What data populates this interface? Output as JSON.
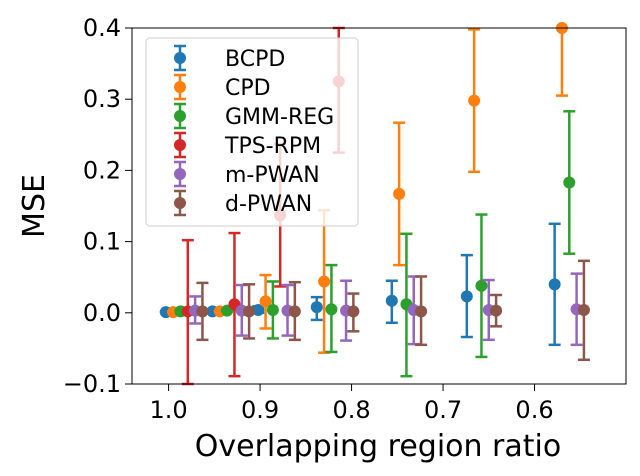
{
  "chart_data": {
    "type": "scatter",
    "subtype": "errorbar",
    "title": "",
    "xlabel": "Overlapping region ratio",
    "ylabel": "MSE",
    "x_inverted": true,
    "xlim": [
      1.04,
      0.5
    ],
    "ylim": [
      -0.1,
      0.4
    ],
    "x_ticks": [
      1.0,
      0.9,
      0.8,
      0.7,
      0.6
    ],
    "x_tick_labels": [
      "1.0",
      "0.9",
      "0.8",
      "0.7",
      "0.6"
    ],
    "y_ticks": [
      -0.1,
      0.0,
      0.1,
      0.2,
      0.3,
      0.4
    ],
    "y_tick_labels": [
      "−0.1",
      "0.0",
      "0.1",
      "0.2",
      "0.3",
      "0.4"
    ],
    "legend_position": "top-left",
    "series": [
      {
        "name": "BCPD",
        "color": "#1f77b4",
        "x": [
          1.003,
          0.952,
          0.902,
          0.838,
          0.756,
          0.674,
          0.578
        ],
        "y": [
          0.001,
          0.002,
          0.004,
          0.008,
          0.017,
          0.023,
          0.04
        ],
        "err_low": [
          0.0,
          0.0,
          0.004,
          0.018,
          0.031,
          0.057,
          0.085
        ],
        "err_high": [
          0.001,
          0.002,
          0.005,
          0.014,
          0.028,
          0.058,
          0.085
        ]
      },
      {
        "name": "CPD",
        "color": "#ff7f0e",
        "x": [
          0.995,
          0.944,
          0.894,
          0.83,
          0.748,
          0.666,
          0.57
        ],
        "y": [
          0.001,
          0.002,
          0.016,
          0.044,
          0.167,
          0.298,
          0.4
        ],
        "err_low": [
          0.0,
          0.0,
          0.038,
          0.1,
          0.1,
          0.1,
          0.095
        ],
        "err_high": [
          0.001,
          0.001,
          0.037,
          0.1,
          0.1,
          0.1,
          0.0
        ]
      },
      {
        "name": "GMM-REG",
        "color": "#2ca02c",
        "x": [
          0.987,
          0.936,
          0.886,
          0.822,
          0.74,
          0.658,
          0.562
        ],
        "y": [
          0.002,
          0.003,
          0.004,
          0.005,
          0.012,
          0.038,
          0.183
        ],
        "err_low": [
          0.0,
          0.0,
          0.04,
          0.06,
          0.101,
          0.1,
          0.1
        ],
        "err_high": [
          0.002,
          0.002,
          0.04,
          0.062,
          0.099,
          0.1,
          0.1
        ]
      },
      {
        "name": "TPS-RPM",
        "color": "#d62728",
        "x": [
          0.979,
          0.928,
          0.878,
          0.814
        ],
        "y": [
          0.002,
          0.012,
          0.137,
          0.325
        ],
        "err_low": [
          0.102,
          0.101,
          0.1,
          0.1
        ],
        "err_high": [
          0.1,
          0.1,
          0.1,
          0.075
        ]
      },
      {
        "name": "m-PWAN",
        "color": "#9467bd",
        "x": [
          0.971,
          0.92,
          0.87,
          0.806,
          0.732,
          0.65,
          0.554
        ],
        "y": [
          0.003,
          0.003,
          0.003,
          0.003,
          0.004,
          0.004,
          0.005
        ],
        "err_low": [
          0.018,
          0.035,
          0.035,
          0.042,
          0.048,
          0.042,
          0.05
        ],
        "err_high": [
          0.02,
          0.036,
          0.036,
          0.042,
          0.047,
          0.042,
          0.05
        ]
      },
      {
        "name": "d-PWAN",
        "color": "#8c564b",
        "x": [
          0.963,
          0.912,
          0.862,
          0.798,
          0.724,
          0.642,
          0.546
        ],
        "y": [
          0.002,
          0.002,
          0.002,
          0.002,
          0.002,
          0.003,
          0.004
        ],
        "err_low": [
          0.04,
          0.038,
          0.04,
          0.028,
          0.047,
          0.022,
          0.07
        ],
        "err_high": [
          0.04,
          0.038,
          0.041,
          0.025,
          0.049,
          0.022,
          0.069
        ]
      }
    ]
  }
}
